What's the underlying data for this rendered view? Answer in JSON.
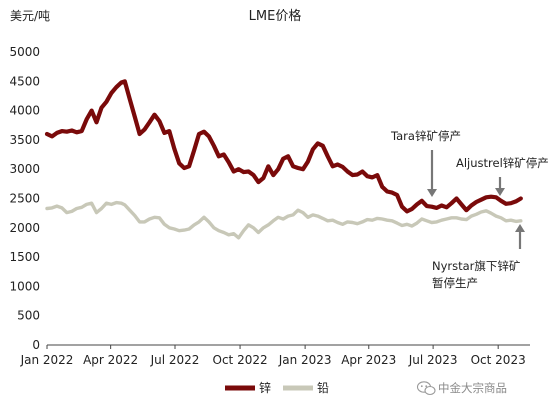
{
  "chart_data": {
    "type": "line",
    "title": "LME价格",
    "ylabel": "美元/吨",
    "xlabel": "",
    "ylim": [
      0,
      5000
    ],
    "y_ticks": [
      "0",
      "500",
      "1000",
      "1500",
      "2000",
      "2500",
      "3000",
      "3500",
      "4000",
      "4500",
      "5000"
    ],
    "x_ticks": [
      "Jan 2022",
      "Apr 2022",
      "Jul 2022",
      "Oct 2022",
      "Jan 2023",
      "Apr 2023",
      "Jul 2023",
      "Oct 2023"
    ],
    "x_range": [
      "2022-01-01",
      "2023-11-15"
    ],
    "grid": false,
    "legend_position": "bottom-center",
    "series": [
      {
        "name": "锌",
        "color": "#7a0a0a",
        "points": [
          [
            "2022-01-01",
            3600
          ],
          [
            "2022-01-08",
            3560
          ],
          [
            "2022-01-15",
            3620
          ],
          [
            "2022-01-22",
            3650
          ],
          [
            "2022-01-29",
            3640
          ],
          [
            "2022-02-05",
            3660
          ],
          [
            "2022-02-12",
            3630
          ],
          [
            "2022-02-19",
            3650
          ],
          [
            "2022-02-26",
            3850
          ],
          [
            "2022-03-05",
            4000
          ],
          [
            "2022-03-12",
            3800
          ],
          [
            "2022-03-19",
            4050
          ],
          [
            "2022-03-26",
            4150
          ],
          [
            "2022-04-02",
            4300
          ],
          [
            "2022-04-09",
            4400
          ],
          [
            "2022-04-16",
            4480
          ],
          [
            "2022-04-21",
            4500
          ],
          [
            "2022-04-28",
            4200
          ],
          [
            "2022-05-05",
            3900
          ],
          [
            "2022-05-12",
            3600
          ],
          [
            "2022-05-19",
            3680
          ],
          [
            "2022-05-26",
            3800
          ],
          [
            "2022-06-02",
            3930
          ],
          [
            "2022-06-09",
            3820
          ],
          [
            "2022-06-16",
            3620
          ],
          [
            "2022-06-23",
            3650
          ],
          [
            "2022-06-30",
            3350
          ],
          [
            "2022-07-07",
            3100
          ],
          [
            "2022-07-14",
            3020
          ],
          [
            "2022-07-21",
            3050
          ],
          [
            "2022-07-28",
            3320
          ],
          [
            "2022-08-04",
            3600
          ],
          [
            "2022-08-11",
            3640
          ],
          [
            "2022-08-18",
            3560
          ],
          [
            "2022-08-25",
            3400
          ],
          [
            "2022-09-01",
            3220
          ],
          [
            "2022-09-08",
            3250
          ],
          [
            "2022-09-15",
            3120
          ],
          [
            "2022-09-22",
            2960
          ],
          [
            "2022-09-29",
            3000
          ],
          [
            "2022-10-06",
            2950
          ],
          [
            "2022-10-13",
            2960
          ],
          [
            "2022-10-20",
            2900
          ],
          [
            "2022-10-27",
            2780
          ],
          [
            "2022-11-03",
            2850
          ],
          [
            "2022-11-10",
            3050
          ],
          [
            "2022-11-17",
            2900
          ],
          [
            "2022-11-24",
            3000
          ],
          [
            "2022-12-01",
            3180
          ],
          [
            "2022-12-08",
            3220
          ],
          [
            "2022-12-15",
            3050
          ],
          [
            "2022-12-22",
            3020
          ],
          [
            "2022-12-29",
            3000
          ],
          [
            "2023-01-05",
            3130
          ],
          [
            "2023-01-12",
            3340
          ],
          [
            "2023-01-19",
            3440
          ],
          [
            "2023-01-26",
            3400
          ],
          [
            "2023-02-02",
            3220
          ],
          [
            "2023-02-09",
            3050
          ],
          [
            "2023-02-16",
            3080
          ],
          [
            "2023-02-23",
            3040
          ],
          [
            "2023-03-02",
            2960
          ],
          [
            "2023-03-09",
            2900
          ],
          [
            "2023-03-16",
            2910
          ],
          [
            "2023-03-23",
            2960
          ],
          [
            "2023-03-30",
            2880
          ],
          [
            "2023-04-06",
            2860
          ],
          [
            "2023-04-13",
            2900
          ],
          [
            "2023-04-20",
            2700
          ],
          [
            "2023-04-27",
            2620
          ],
          [
            "2023-05-04",
            2600
          ],
          [
            "2023-05-11",
            2560
          ],
          [
            "2023-05-18",
            2360
          ],
          [
            "2023-05-25",
            2280
          ],
          [
            "2023-06-01",
            2320
          ],
          [
            "2023-06-08",
            2400
          ],
          [
            "2023-06-15",
            2460
          ],
          [
            "2023-06-22",
            2370
          ],
          [
            "2023-06-29",
            2360
          ],
          [
            "2023-07-06",
            2340
          ],
          [
            "2023-07-13",
            2380
          ],
          [
            "2023-07-20",
            2350
          ],
          [
            "2023-07-27",
            2420
          ],
          [
            "2023-08-03",
            2500
          ],
          [
            "2023-08-10",
            2400
          ],
          [
            "2023-08-17",
            2300
          ],
          [
            "2023-08-24",
            2380
          ],
          [
            "2023-08-31",
            2440
          ],
          [
            "2023-09-07",
            2480
          ],
          [
            "2023-09-14",
            2520
          ],
          [
            "2023-09-21",
            2530
          ],
          [
            "2023-09-28",
            2520
          ],
          [
            "2023-10-05",
            2460
          ],
          [
            "2023-10-12",
            2410
          ],
          [
            "2023-10-19",
            2420
          ],
          [
            "2023-10-26",
            2450
          ],
          [
            "2023-11-02",
            2500
          ]
        ]
      },
      {
        "name": "铅",
        "color": "#c8c8b8",
        "points": [
          [
            "2022-01-01",
            2330
          ],
          [
            "2022-01-08",
            2340
          ],
          [
            "2022-01-15",
            2370
          ],
          [
            "2022-01-22",
            2340
          ],
          [
            "2022-01-29",
            2260
          ],
          [
            "2022-02-05",
            2280
          ],
          [
            "2022-02-12",
            2330
          ],
          [
            "2022-02-19",
            2350
          ],
          [
            "2022-02-26",
            2400
          ],
          [
            "2022-03-05",
            2420
          ],
          [
            "2022-03-12",
            2260
          ],
          [
            "2022-03-19",
            2330
          ],
          [
            "2022-03-26",
            2420
          ],
          [
            "2022-04-02",
            2400
          ],
          [
            "2022-04-09",
            2430
          ],
          [
            "2022-04-16",
            2420
          ],
          [
            "2022-04-21",
            2390
          ],
          [
            "2022-04-28",
            2300
          ],
          [
            "2022-05-05",
            2210
          ],
          [
            "2022-05-12",
            2100
          ],
          [
            "2022-05-19",
            2100
          ],
          [
            "2022-05-26",
            2150
          ],
          [
            "2022-06-02",
            2180
          ],
          [
            "2022-06-09",
            2170
          ],
          [
            "2022-06-16",
            2060
          ],
          [
            "2022-06-23",
            2000
          ],
          [
            "2022-06-30",
            1980
          ],
          [
            "2022-07-07",
            1950
          ],
          [
            "2022-07-14",
            1960
          ],
          [
            "2022-07-21",
            1980
          ],
          [
            "2022-07-28",
            2050
          ],
          [
            "2022-08-04",
            2100
          ],
          [
            "2022-08-11",
            2180
          ],
          [
            "2022-08-18",
            2100
          ],
          [
            "2022-08-25",
            2000
          ],
          [
            "2022-09-01",
            1950
          ],
          [
            "2022-09-08",
            1920
          ],
          [
            "2022-09-15",
            1880
          ],
          [
            "2022-09-22",
            1900
          ],
          [
            "2022-09-29",
            1830
          ],
          [
            "2022-10-06",
            1950
          ],
          [
            "2022-10-13",
            2050
          ],
          [
            "2022-10-20",
            2000
          ],
          [
            "2022-10-27",
            1920
          ],
          [
            "2022-11-03",
            2000
          ],
          [
            "2022-11-10",
            2050
          ],
          [
            "2022-11-17",
            2120
          ],
          [
            "2022-11-24",
            2180
          ],
          [
            "2022-12-01",
            2150
          ],
          [
            "2022-12-08",
            2200
          ],
          [
            "2022-12-15",
            2220
          ],
          [
            "2022-12-22",
            2300
          ],
          [
            "2022-12-29",
            2260
          ],
          [
            "2023-01-05",
            2180
          ],
          [
            "2023-01-12",
            2220
          ],
          [
            "2023-01-19",
            2200
          ],
          [
            "2023-01-26",
            2160
          ],
          [
            "2023-02-02",
            2120
          ],
          [
            "2023-02-09",
            2130
          ],
          [
            "2023-02-16",
            2090
          ],
          [
            "2023-02-23",
            2060
          ],
          [
            "2023-03-02",
            2100
          ],
          [
            "2023-03-09",
            2090
          ],
          [
            "2023-03-16",
            2070
          ],
          [
            "2023-03-23",
            2100
          ],
          [
            "2023-03-30",
            2140
          ],
          [
            "2023-04-06",
            2130
          ],
          [
            "2023-04-13",
            2160
          ],
          [
            "2023-04-20",
            2150
          ],
          [
            "2023-04-27",
            2130
          ],
          [
            "2023-05-04",
            2120
          ],
          [
            "2023-05-11",
            2080
          ],
          [
            "2023-05-18",
            2040
          ],
          [
            "2023-05-25",
            2060
          ],
          [
            "2023-06-01",
            2030
          ],
          [
            "2023-06-08",
            2080
          ],
          [
            "2023-06-15",
            2150
          ],
          [
            "2023-06-22",
            2120
          ],
          [
            "2023-06-29",
            2090
          ],
          [
            "2023-07-06",
            2100
          ],
          [
            "2023-07-13",
            2130
          ],
          [
            "2023-07-20",
            2150
          ],
          [
            "2023-07-27",
            2170
          ],
          [
            "2023-08-03",
            2170
          ],
          [
            "2023-08-10",
            2150
          ],
          [
            "2023-08-17",
            2140
          ],
          [
            "2023-08-24",
            2200
          ],
          [
            "2023-08-31",
            2230
          ],
          [
            "2023-09-07",
            2270
          ],
          [
            "2023-09-14",
            2290
          ],
          [
            "2023-09-21",
            2250
          ],
          [
            "2023-09-28",
            2200
          ],
          [
            "2023-10-05",
            2170
          ],
          [
            "2023-10-12",
            2120
          ],
          [
            "2023-10-19",
            2130
          ],
          [
            "2023-10-26",
            2110
          ],
          [
            "2023-11-02",
            2120
          ]
        ]
      }
    ],
    "annotations": [
      {
        "lines": [
          "Tara锌矿停产"
        ],
        "date": "2023-06-06",
        "value": 2350
      },
      {
        "lines": [
          "Aljustrel锌矿停产"
        ],
        "date": "2023-09-14",
        "value": 2500
      },
      {
        "lines": [
          "Nyrstar旗下锌矿",
          "暂停生产"
        ],
        "date": "2023-10-24",
        "value": 2140
      }
    ]
  },
  "watermark": "中金大宗商品"
}
